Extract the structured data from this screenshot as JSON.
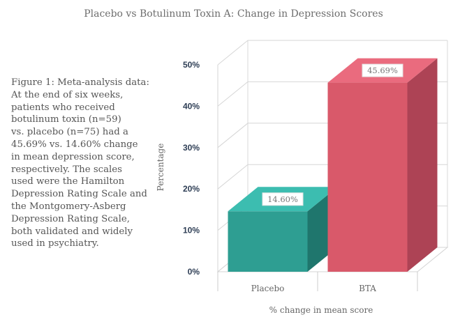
{
  "caption_lines": [
    "Figure 1: Meta-analysis data:",
    "At the end of six weeks,",
    "patients who received",
    "botulinum toxin (n=59)",
    "vs. placebo (n=75) had a",
    "45.69% vs. 14.60% change",
    "in mean depression score,",
    "respectively. The scales",
    "used were the Hamilton",
    "Depression Rating Scale and",
    "the Montgomery-Asberg",
    "Depression Rating Scale,",
    "both validated and widely",
    "used in psychiatry."
  ],
  "chart_data": {
    "type": "bar",
    "title": "Placebo vs Botulinum Toxin A: Change in Depression Scores",
    "xlabel": "% change in mean score",
    "ylabel": "Percentage",
    "categories": [
      "Placebo",
      "BTA"
    ],
    "values": [
      14.6,
      45.69
    ],
    "data_labels": [
      "14.60%",
      "45.69%"
    ],
    "ylim": [
      0,
      50
    ],
    "yticks": [
      "0%",
      "10%",
      "20%",
      "30%",
      "40%",
      "50%"
    ],
    "grid": true,
    "three_d": true,
    "colors": {
      "Placebo": {
        "front": "#2e9e92",
        "side": "#1f766d",
        "top": "#3cbdb0"
      },
      "BTA": {
        "front": "#d9596a",
        "side": "#ad4355",
        "top": "#ea6b7e"
      }
    }
  }
}
